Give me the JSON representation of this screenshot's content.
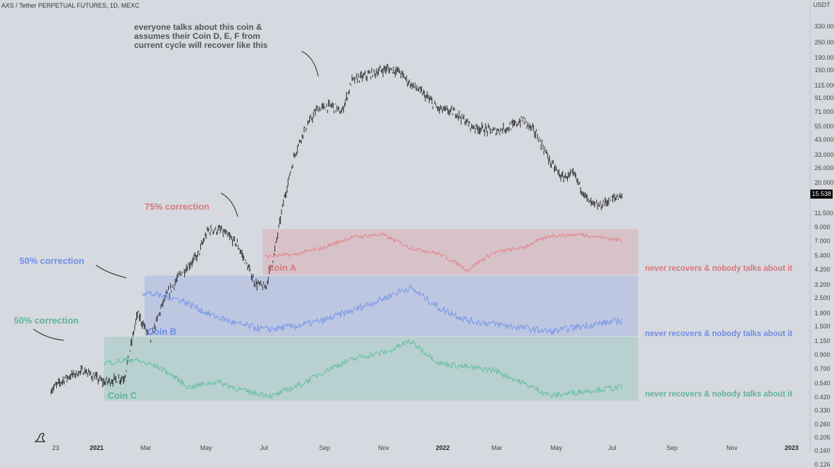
{
  "header": {
    "title": "AXS / Tether PERPETUAL FUTURES, 1D, MEXC"
  },
  "price_scale": {
    "unit": "USDT",
    "last_price": "15.538"
  },
  "annotations": {
    "headline": "everyone talks about this coin & assumes their Coin D, E, F from current cycle will recover like this",
    "correction_75": "75% correction",
    "correction_50_b": "50% correction",
    "correction_50_c": "50% correction",
    "coin_a": "Coin A",
    "coin_b": "Coin B",
    "coin_c": "Coin C",
    "never_a": "never recovers & nobody talks about it",
    "never_b": "never recovers & nobody talks about it",
    "never_c": "never recovers & nobody talks about it"
  },
  "colors": {
    "coin_a": "#e08a8e",
    "coin_b": "#7f9be8",
    "coin_c": "#6cbfaa",
    "candle": "#2b2b2b",
    "background": "#d6d9df"
  },
  "chart_data": {
    "type": "line",
    "title": "AXS / Tether PERPETUAL FUTURES, 1D, MEXC",
    "yscale": "log",
    "ylim": [
      0.1,
      330
    ],
    "y_ticks": [
      "330.000",
      "250.000",
      "190.000",
      "150.000",
      "115.000",
      "91.000",
      "71.000",
      "55.000",
      "43.000",
      "33.000",
      "26.000",
      "20.000",
      "15.538",
      "11.500",
      "9.000",
      "7.000",
      "5.400",
      "4.200",
      "3.200",
      "2.500",
      "1.900",
      "1.500",
      "1.150",
      "0.900",
      "0.700",
      "0.540",
      "0.420",
      "0.330",
      "0.260",
      "0.205",
      "0.160",
      "0.126"
    ],
    "x_ticks": [
      "23",
      "2021",
      "Mar",
      "May",
      "Jul",
      "Sep",
      "Nov",
      "2022",
      "Mar",
      "May",
      "Jul",
      "Sep",
      "Nov",
      "2023"
    ],
    "series": [
      {
        "name": "AXS",
        "x": [
          "2020-11-15",
          "2020-12-01",
          "2020-12-20",
          "2021-01-10",
          "2021-02-01",
          "2021-02-15",
          "2021-03-01",
          "2021-03-15",
          "2021-04-01",
          "2021-04-20",
          "2021-05-01",
          "2021-05-15",
          "2021-06-01",
          "2021-06-20",
          "2021-07-01",
          "2021-07-10",
          "2021-07-20",
          "2021-08-01",
          "2021-08-10",
          "2021-08-25",
          "2021-09-10",
          "2021-09-20",
          "2021-10-01",
          "2021-10-20",
          "2021-11-06",
          "2021-11-20",
          "2021-12-01",
          "2021-12-15",
          "2022-01-01",
          "2022-01-20",
          "2022-02-05",
          "2022-02-20",
          "2022-03-01",
          "2022-03-20",
          "2022-04-01",
          "2022-04-15",
          "2022-05-01",
          "2022-05-12",
          "2022-05-25",
          "2022-06-10",
          "2022-06-20",
          "2022-07-01",
          "2022-07-15"
        ],
        "y": [
          0.48,
          0.6,
          0.68,
          0.55,
          0.6,
          1.9,
          1.2,
          2.4,
          3.8,
          5.4,
          8.5,
          8.5,
          6.6,
          3.3,
          3.0,
          5.4,
          14,
          33,
          49,
          75,
          80,
          70,
          125,
          140,
          155,
          148,
          120,
          100,
          75,
          70,
          55,
          52,
          50,
          55,
          62,
          48,
          28,
          22,
          23,
          14,
          13,
          14.5,
          16
        ]
      },
      {
        "name": "Coin A",
        "x": [
          "2021-07-01",
          "2021-08-01",
          "2021-09-01",
          "2021-10-01",
          "2021-11-01",
          "2021-12-01",
          "2022-01-01",
          "2022-02-01",
          "2022-03-01",
          "2022-04-01",
          "2022-05-01",
          "2022-06-01",
          "2022-07-15"
        ],
        "y": [
          4.0,
          4.2,
          5.0,
          6.5,
          7.0,
          5.0,
          4.3,
          2.8,
          4.4,
          5.0,
          6.8,
          7.0,
          6.0
        ]
      },
      {
        "name": "Coin B",
        "x": [
          "2021-02-20",
          "2021-04-01",
          "2021-05-01",
          "2021-06-01",
          "2021-07-01",
          "2021-08-01",
          "2021-09-01",
          "2021-10-01",
          "2021-11-01",
          "2021-12-01",
          "2022-01-01",
          "2022-02-01",
          "2022-03-01",
          "2022-04-01",
          "2022-05-01",
          "2022-06-01",
          "2022-07-15"
        ],
        "y": [
          1.5,
          1.35,
          1.1,
          0.95,
          0.88,
          0.92,
          1.0,
          1.15,
          1.35,
          1.6,
          1.2,
          1.0,
          0.95,
          0.9,
          0.85,
          0.92,
          1.0
        ]
      },
      {
        "name": "Coin C",
        "x": [
          "2021-01-10",
          "2021-02-10",
          "2021-03-10",
          "2021-04-10",
          "2021-05-10",
          "2021-06-10",
          "2021-07-10",
          "2021-08-10",
          "2021-09-10",
          "2021-10-10",
          "2021-11-10",
          "2021-12-01",
          "2022-01-01",
          "2022-02-01",
          "2022-03-01",
          "2022-04-01",
          "2022-05-01",
          "2022-06-01",
          "2022-07-15"
        ],
        "y": [
          0.45,
          0.48,
          0.42,
          0.3,
          0.33,
          0.28,
          0.26,
          0.32,
          0.42,
          0.5,
          0.55,
          0.65,
          0.45,
          0.42,
          0.4,
          0.32,
          0.26,
          0.28,
          0.3
        ]
      }
    ],
    "grid": false,
    "legend": "none"
  }
}
